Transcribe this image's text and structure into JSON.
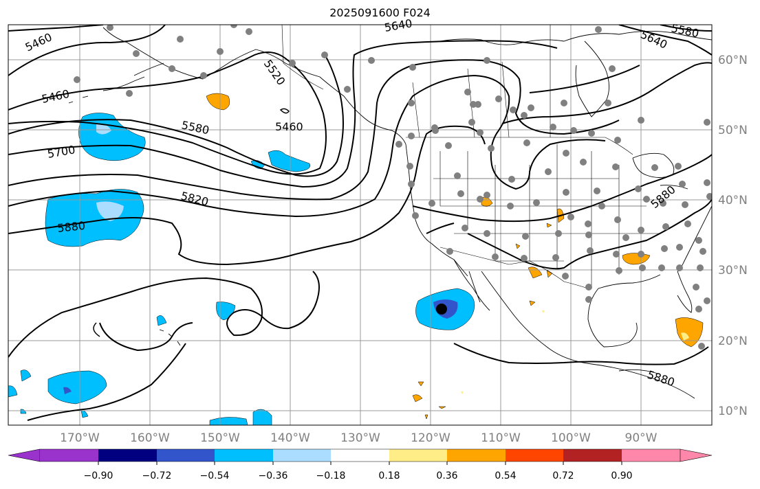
{
  "title": "2025091600 F024",
  "map": {
    "lon_ticks": [
      "170°W",
      "160°W",
      "150°W",
      "140°W",
      "130°W",
      "120°W",
      "110°W",
      "100°W",
      "90°W"
    ],
    "lat_ticks": [
      "60°N",
      "50°N",
      "40°N",
      "30°N",
      "20°N",
      "10°N"
    ],
    "contour_labels": [
      "5460",
      "5460",
      "5520",
      "5460",
      "5580",
      "5700",
      "5820",
      "5880",
      "5640",
      "5640",
      "5580",
      "5880",
      "5880"
    ],
    "colors": {
      "coast": "#000000",
      "grid": "#999999",
      "contour": "#000000",
      "station": "#808080",
      "marker": "#000000"
    }
  },
  "colorbar": {
    "colors": [
      "#9933cc",
      "#000080",
      "#3355cc",
      "#00bfff",
      "#aaddff",
      "#ffffff",
      "#ffee88",
      "#ffa500",
      "#ff4500",
      "#b22222",
      "#ff88aa"
    ],
    "tick_labels": [
      "−0.90",
      "−0.72",
      "−0.54",
      "−0.36",
      "−0.18",
      "0.18",
      "0.36",
      "0.54",
      "0.72",
      "0.90"
    ]
  }
}
